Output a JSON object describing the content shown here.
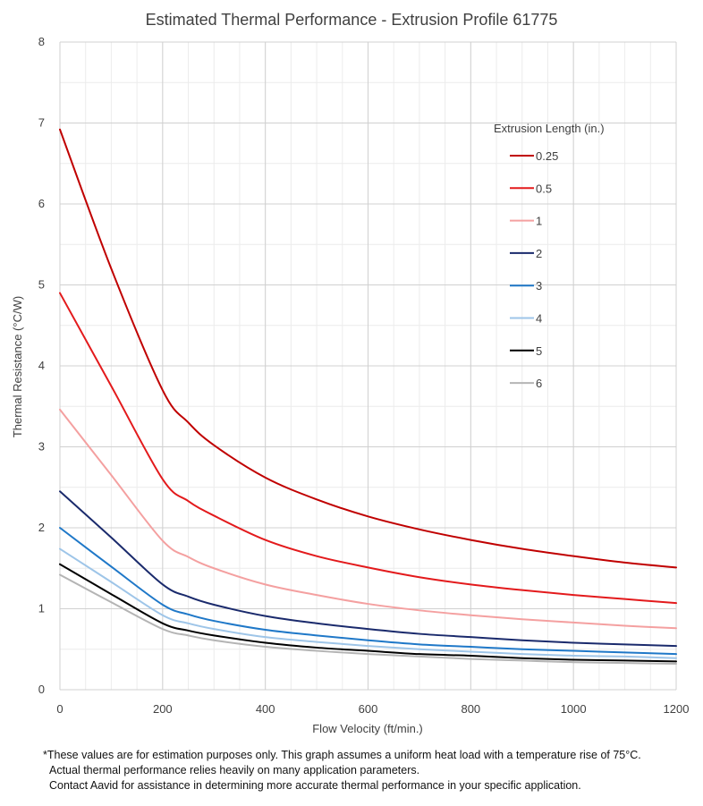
{
  "chart_data": {
    "type": "line",
    "title": "Estimated Thermal Performance - Extrusion Profile 61775",
    "xlabel": "Flow Velocity (ft/min.)",
    "ylabel": "Thermal Resistance (°C/W)",
    "xlim": [
      0,
      1200
    ],
    "ylim": [
      0,
      8
    ],
    "x_ticks": [
      0,
      200,
      400,
      600,
      800,
      1000,
      1200
    ],
    "y_ticks": [
      0,
      1,
      2,
      3,
      4,
      5,
      6,
      7,
      8
    ],
    "x_minor_step": 50,
    "y_minor_step": 0.5,
    "grid": true,
    "legend_title": "Extrusion Length (in.)",
    "legend_position": "top-right",
    "x": [
      0,
      100,
      200,
      250,
      300,
      400,
      500,
      600,
      700,
      800,
      900,
      1000,
      1100,
      1200
    ],
    "series": [
      {
        "name": "0.25",
        "color": "#c00000",
        "values": [
          6.92,
          5.2,
          3.7,
          3.3,
          3.02,
          2.62,
          2.35,
          2.14,
          1.98,
          1.85,
          1.74,
          1.65,
          1.57,
          1.51
        ]
      },
      {
        "name": "0.5",
        "color": "#e31a1c",
        "values": [
          4.9,
          3.75,
          2.6,
          2.33,
          2.15,
          1.85,
          1.65,
          1.51,
          1.39,
          1.3,
          1.23,
          1.17,
          1.12,
          1.07
        ]
      },
      {
        "name": "1",
        "color": "#f4a0a0",
        "values": [
          3.46,
          2.65,
          1.84,
          1.64,
          1.5,
          1.3,
          1.17,
          1.06,
          0.98,
          0.92,
          0.87,
          0.83,
          0.79,
          0.76
        ]
      },
      {
        "name": "2",
        "color": "#1a2a6c",
        "values": [
          2.45,
          1.88,
          1.3,
          1.15,
          1.05,
          0.91,
          0.82,
          0.75,
          0.69,
          0.65,
          0.61,
          0.58,
          0.56,
          0.54
        ]
      },
      {
        "name": "3",
        "color": "#1f78c8",
        "values": [
          2.0,
          1.52,
          1.05,
          0.93,
          0.85,
          0.74,
          0.67,
          0.61,
          0.56,
          0.53,
          0.5,
          0.48,
          0.46,
          0.44
        ]
      },
      {
        "name": "4",
        "color": "#9ec5e8",
        "values": [
          1.74,
          1.33,
          0.92,
          0.82,
          0.75,
          0.65,
          0.59,
          0.54,
          0.5,
          0.47,
          0.44,
          0.42,
          0.41,
          0.39
        ]
      },
      {
        "name": "5",
        "color": "#000000",
        "values": [
          1.55,
          1.18,
          0.82,
          0.73,
          0.67,
          0.58,
          0.52,
          0.48,
          0.44,
          0.42,
          0.39,
          0.37,
          0.36,
          0.35
        ]
      },
      {
        "name": "6",
        "color": "#b4b4b4",
        "values": [
          1.42,
          1.08,
          0.75,
          0.67,
          0.61,
          0.53,
          0.48,
          0.44,
          0.41,
          0.38,
          0.36,
          0.34,
          0.33,
          0.32
        ]
      }
    ]
  },
  "footnote": {
    "line1": "*These values are for estimation purposes only. This graph assumes a uniform heat load with a temperature rise of 75°C.",
    "line2": "Actual thermal performance relies heavily on many application parameters.",
    "line3": "Contact Aavid for assistance in determining more accurate thermal performance in your specific application."
  }
}
